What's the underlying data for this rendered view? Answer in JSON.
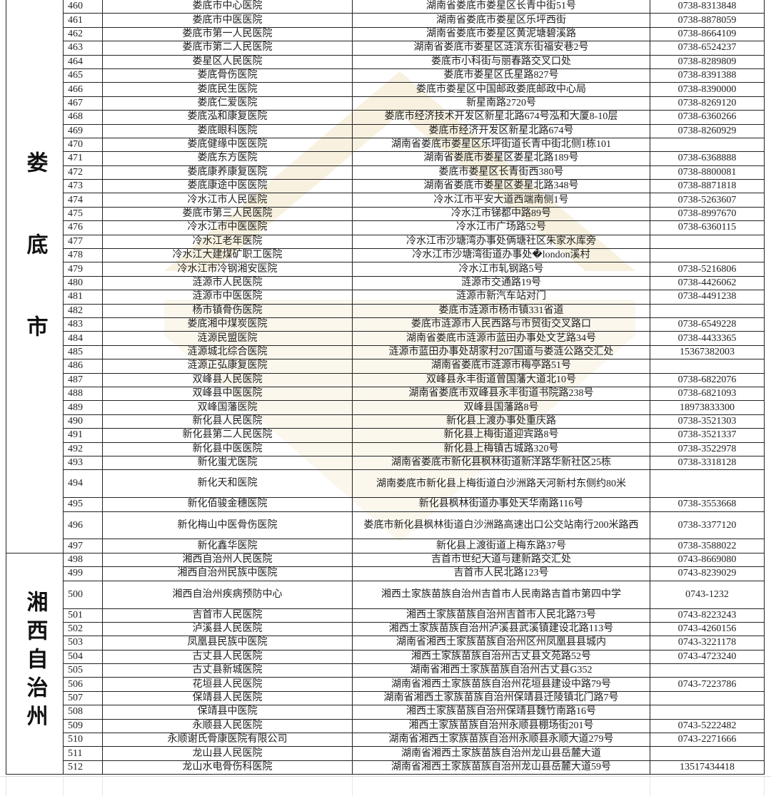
{
  "watermark_color": "#f3e8cc",
  "regions": [
    {
      "label": "娄底市",
      "rows": [
        {
          "no": "460",
          "name": "娄底市中心医院",
          "address": "湖南省娄底市娄星区长青中街51号",
          "phone": "0738-8313848"
        },
        {
          "no": "461",
          "name": "娄底市中医医院",
          "address": "湖南省娄底市娄星区乐坪西街",
          "phone": "0738-8878059"
        },
        {
          "no": "462",
          "name": "娄底市第一人民医院",
          "address": "湖南省娄底市娄星区黄泥塘碧溪路",
          "phone": "0738-8664109"
        },
        {
          "no": "463",
          "name": "娄底市第二人民医院",
          "address": "湖南省娄底市娄星区涟滨东街福安巷2号",
          "phone": "0738-6524237"
        },
        {
          "no": "464",
          "name": "娄星区人民医院",
          "address": "娄底市小科街与丽春路交叉口处",
          "phone": "0738-8289809"
        },
        {
          "no": "465",
          "name": "娄底骨伤医院",
          "address": "娄底市娄星区氐星路827号",
          "phone": "0738-8391388"
        },
        {
          "no": "466",
          "name": "娄底民生医院",
          "address": "娄底市娄星区中国邮政娄底邮政中心局",
          "phone": "0738-8390000"
        },
        {
          "no": "467",
          "name": "娄底仁爱医院",
          "address": "新星南路2720号",
          "phone": "0738-8269120"
        },
        {
          "no": "468",
          "name": "娄底泓和康复医院",
          "address": "娄底市经济技术开发区新星北路674号泓和大厦8-10层",
          "phone": "0738-6360266"
        },
        {
          "no": "469",
          "name": "娄底眼科医院",
          "address": "娄底市经济开发区新星北路674号",
          "phone": "0738-8260929"
        },
        {
          "no": "470",
          "name": "娄底健缘中医医院",
          "address": "湖南省娄底市娄星区乐坪街道长青中街北侧1栋101",
          "phone": ""
        },
        {
          "no": "471",
          "name": "娄底东方医院",
          "address": "湖南省娄底市娄星区娄星北路189号",
          "phone": "0738-6368888"
        },
        {
          "no": "472",
          "name": "娄底康养康复医院",
          "address": "娄底市娄星区长青街西380号",
          "phone": "0738-8800081"
        },
        {
          "no": "473",
          "name": "娄底康途中医医院",
          "address": "湖南省娄底市娄星区娄星北路348号",
          "phone": "0738-8871818"
        },
        {
          "no": "474",
          "name": "冷水江市人民医院",
          "address": "冷水江市平安大道西端南侧1号",
          "phone": "0738-5263607"
        },
        {
          "no": "475",
          "name": "娄底市第三人民医院",
          "address": "冷水江市锑都中路89号",
          "phone": "0738-8997670"
        },
        {
          "no": "476",
          "name": "冷水江市中医医院",
          "address": "冷水江市广场路52号",
          "phone": "0738-6360115"
        },
        {
          "no": "477",
          "name": "冷水江老年医院",
          "address": "冷水江市沙塘湾办事处俩塘社区朱家水库旁",
          "phone": ""
        },
        {
          "no": "478",
          "name": "冷水江大建煤矿职工医院",
          "address": "冷水江市沙塘湾街道办事处�london溪村",
          "phone": ""
        },
        {
          "no": "479",
          "name": "冷水江市冷钢湘安医院",
          "address": "冷水江市轧钢路5号",
          "phone": "0738-5216806"
        },
        {
          "no": "480",
          "name": "涟源市人民医院",
          "address": "涟源市交通路19号",
          "phone": "0738-4426062"
        },
        {
          "no": "481",
          "name": "涟源市中医医院",
          "address": "涟源市新汽车站对门",
          "phone": "0738-4491238"
        },
        {
          "no": "482",
          "name": "杨市镇骨伤医院",
          "address": "娄底市涟源市杨市镇331省道",
          "phone": ""
        },
        {
          "no": "483",
          "name": "娄底湘中煤炭医院",
          "address": "娄底市涟源市人民西路与市贸街交叉路口",
          "phone": "0738-6549228"
        },
        {
          "no": "484",
          "name": "涟源民盟医院",
          "address": "湖南省娄底市涟源市蓝田办事处文艺路34号",
          "phone": "0738-4433365"
        },
        {
          "no": "485",
          "name": "涟源城北综合医院",
          "address": "涟源市蓝田办事处胡家村207国道与娄涟公路交汇处",
          "phone": "15367382003"
        },
        {
          "no": "486",
          "name": "涟源正弘康复医院",
          "address": "湖南省娄底市涟源市梅亭路51号",
          "phone": ""
        },
        {
          "no": "487",
          "name": "双峰县人民医院",
          "address": "双峰县永丰街道曾国藩大道北10号",
          "phone": "0738-6822076"
        },
        {
          "no": "488",
          "name": "双峰县中医医院",
          "address": "湖南省娄底市双峰县永丰街道书院路238号",
          "phone": "0738-6821093"
        },
        {
          "no": "489",
          "name": "双峰国藩医院",
          "address": "双峰县国藩路8号",
          "phone": "18973833300"
        },
        {
          "no": "490",
          "name": "新化县人民医院",
          "address": "新化县上渡办事处重庆路",
          "phone": "0738-3521303"
        },
        {
          "no": "491",
          "name": "新化县第二人民医院",
          "address": "新化县上梅街道迎宾路8号",
          "phone": "0738-3521337"
        },
        {
          "no": "492",
          "name": "新化县中医医院",
          "address": "新化县上梅镇古城路320号",
          "phone": "0738-3522978"
        },
        {
          "no": "493",
          "name": "新化蚩尤医院",
          "address": "湖南省娄底市新化县枫林街道新洋路华新社区25栋",
          "phone": "0738-3318128"
        },
        {
          "no": "494",
          "name": "新化天和医院",
          "address": "湖南娄底市新化县上梅街道白沙洲路天河新村东侧约80米",
          "phone": "",
          "wrap": true
        },
        {
          "no": "495",
          "name": "新化佰骏金穗医院",
          "address": "新化县枫林街道办事处天华南路116号",
          "phone": "0738-3553668"
        },
        {
          "no": "496",
          "name": "新化梅山中医骨伤医院",
          "address": "娄底市新化县枫林街道白沙洲路高速出口公交站南行200米路西",
          "phone": "0738-3377120",
          "wrap": true
        },
        {
          "no": "497",
          "name": "新化鑫华医院",
          "address": "新化县上渡街道上梅东路37号",
          "phone": "0738-3588022"
        }
      ]
    },
    {
      "label": "湘西自治州",
      "rows": [
        {
          "no": "498",
          "name": "湘西自治州人民医院",
          "address": "吉首市世纪大道与建新路交汇处",
          "phone": "0743-8669080"
        },
        {
          "no": "499",
          "name": "湘西自治州民族中医院",
          "address": "吉首市人民北路123号",
          "phone": "0743-8239029"
        },
        {
          "no": "500",
          "name": "湘西自治州疾病预防中心",
          "address": "湘西土家族苗族自治州吉首市人民南路吉首市第四中学",
          "phone": "0743-1232",
          "wrap": true
        },
        {
          "no": "501",
          "name": "吉首市人民医院",
          "address": "湘西土家族苗族自治州吉首市人民北路73号",
          "phone": "0743-8223243"
        },
        {
          "no": "502",
          "name": "泸溪县人民医院",
          "address": "湘西土家族苗族自治州泸溪县武溪镇建设北路113号",
          "phone": "0743-4260156"
        },
        {
          "no": "503",
          "name": "凤凰县民族中医院",
          "address": "湖南省湘西土家族苗族自治州区州凤凰县县城内",
          "phone": "0743-3221178"
        },
        {
          "no": "504",
          "name": "古丈县人民医院",
          "address": "湘西土家族苗族自治州古丈县文苑路52号",
          "phone": "0743-4723240"
        },
        {
          "no": "505",
          "name": "古丈县新城医院",
          "address": "湖南省湘西土家族苗族自治州古丈县G352",
          "phone": ""
        },
        {
          "no": "506",
          "name": "花垣县人民医院",
          "address": "湖南省湘西土家族苗族自治州花垣县建设中路79号",
          "phone": "0743-7223786"
        },
        {
          "no": "507",
          "name": "保靖县人民医院",
          "address": "湖南省湘西土家族苗族自治州保靖县迁陵镇北门路7号",
          "phone": ""
        },
        {
          "no": "508",
          "name": "保靖县中医院",
          "address": "湘西土家族苗族自治州保靖县魏竹南路16号",
          "phone": ""
        },
        {
          "no": "509",
          "name": "永顺县人民医院",
          "address": "湘西土家族苗族自治州永顺县棚场街201号",
          "phone": "0743-5222482"
        },
        {
          "no": "510",
          "name": "永顺谢氏骨康医院有限公司",
          "address": "湖南省湘西土家族苗族自治州永顺县永顺大道279号",
          "phone": "0743-2271666"
        },
        {
          "no": "511",
          "name": "龙山县人民医院",
          "address": "湖南省湘西土家族苗族自治州龙山县岳麓大道",
          "phone": ""
        },
        {
          "no": "512",
          "name": "龙山水电骨伤科医院",
          "address": "湖南省湘西土家族苗族自治州龙山县岳麓大道59号",
          "phone": "13517434418"
        }
      ]
    }
  ]
}
